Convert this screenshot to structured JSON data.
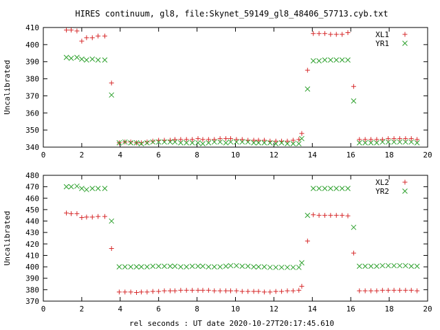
{
  "chart_data": [
    {
      "type": "scatter",
      "title": "HIRES continuum, gl8, file:Skynet_59149_gl8_48406_57713.cyb.txt",
      "xlabel": "",
      "ylabel": "Uncalibrated",
      "xlim": [
        0,
        20
      ],
      "ylim": [
        340,
        410
      ],
      "xticks": [
        "0",
        "2",
        "4",
        "6",
        "8",
        "10",
        "12",
        "14",
        "16",
        "18",
        "20"
      ],
      "yticks": [
        "340",
        "350",
        "360",
        "370",
        "380",
        "390",
        "400",
        "410"
      ],
      "legend_position": "top-right",
      "series": [
        {
          "name": "XL1",
          "marker": "plus",
          "color": "#d62728",
          "x": [
            1.2,
            1.45,
            1.75,
            2.0,
            2.25,
            2.55,
            2.85,
            3.2,
            3.55,
            3.95,
            4.25,
            4.55,
            4.85,
            5.1,
            5.4,
            5.7,
            6.0,
            6.3,
            6.6,
            6.85,
            7.15,
            7.45,
            7.75,
            8.05,
            8.3,
            8.6,
            8.9,
            9.2,
            9.5,
            9.75,
            10.05,
            10.35,
            10.65,
            10.95,
            11.2,
            11.5,
            11.8,
            12.1,
            12.4,
            12.7,
            13.0,
            13.3,
            13.45,
            13.75,
            14.05,
            14.35,
            14.65,
            14.95,
            15.25,
            15.55,
            15.85,
            16.15,
            16.45,
            16.75,
            17.05,
            17.35,
            17.65,
            17.95,
            18.25,
            18.55,
            18.85,
            19.15,
            19.45
          ],
          "y": [
            408.5,
            408.5,
            408,
            402,
            404,
            404,
            405,
            405,
            377.5,
            342.5,
            343,
            343,
            342.5,
            342.5,
            343,
            343.5,
            344,
            344,
            344,
            344.5,
            344.5,
            344.5,
            344.5,
            345,
            344.5,
            344.5,
            344.5,
            345,
            345,
            345,
            344.5,
            344.5,
            344,
            344,
            344,
            344,
            343.5,
            343.5,
            343.5,
            343.5,
            344,
            344.5,
            348,
            385,
            406.5,
            406.5,
            406.5,
            406,
            406,
            406,
            407,
            375.5,
            344.5,
            344.5,
            344.5,
            344.5,
            344.5,
            345,
            345,
            345,
            345,
            345,
            344.5
          ]
        },
        {
          "name": "YR1",
          "marker": "cross",
          "color": "#2ca02c",
          "x": [
            1.2,
            1.45,
            1.75,
            2.0,
            2.25,
            2.55,
            2.85,
            3.2,
            3.55,
            3.95,
            4.25,
            4.55,
            4.85,
            5.1,
            5.4,
            5.7,
            6.0,
            6.3,
            6.6,
            6.85,
            7.15,
            7.45,
            7.75,
            8.05,
            8.3,
            8.6,
            8.9,
            9.2,
            9.5,
            9.75,
            10.05,
            10.35,
            10.65,
            10.95,
            11.2,
            11.5,
            11.8,
            12.1,
            12.4,
            12.7,
            13.0,
            13.3,
            13.45,
            13.75,
            14.05,
            14.35,
            14.65,
            14.95,
            15.25,
            15.55,
            15.85,
            16.15,
            16.45,
            16.75,
            17.05,
            17.35,
            17.65,
            17.95,
            18.25,
            18.55,
            18.85,
            19.15,
            19.45
          ],
          "y": [
            392.5,
            392,
            392.5,
            391.5,
            391,
            391.5,
            391,
            391,
            370.5,
            342.5,
            343,
            342.5,
            342.5,
            342,
            342.5,
            343,
            343,
            343,
            343,
            343,
            342.5,
            342.5,
            342.5,
            342.5,
            342,
            342.5,
            343,
            343,
            342.5,
            343,
            343,
            343,
            343,
            342.5,
            342.5,
            342.5,
            342.5,
            342,
            342.5,
            342,
            342,
            342,
            345,
            374,
            390.5,
            390.5,
            391,
            391,
            391,
            391,
            391,
            367,
            342.5,
            342.5,
            342.5,
            342.5,
            343,
            343,
            343,
            343,
            343,
            343,
            342.5
          ]
        }
      ]
    },
    {
      "type": "scatter",
      "title": "",
      "xlabel": "rel seconds : UT date 2020-10-27T20:17:45.610",
      "ylabel": "Uncalibrated",
      "xlim": [
        0,
        20
      ],
      "ylim": [
        370,
        480
      ],
      "xticks": [
        "0",
        "2",
        "4",
        "6",
        "8",
        "10",
        "12",
        "14",
        "16",
        "18",
        "20"
      ],
      "yticks": [
        "370",
        "380",
        "390",
        "400",
        "410",
        "420",
        "430",
        "440",
        "450",
        "460",
        "470",
        "480"
      ],
      "legend_position": "top-right",
      "series": [
        {
          "name": "XL2",
          "marker": "plus",
          "color": "#d62728",
          "x": [
            1.2,
            1.45,
            1.75,
            2.0,
            2.25,
            2.55,
            2.85,
            3.2,
            3.55,
            3.95,
            4.25,
            4.55,
            4.85,
            5.1,
            5.4,
            5.7,
            6.0,
            6.3,
            6.6,
            6.85,
            7.15,
            7.45,
            7.75,
            8.05,
            8.3,
            8.6,
            8.9,
            9.2,
            9.5,
            9.75,
            10.05,
            10.35,
            10.65,
            10.95,
            11.2,
            11.5,
            11.8,
            12.1,
            12.4,
            12.7,
            13.0,
            13.3,
            13.45,
            13.75,
            14.05,
            14.35,
            14.65,
            14.95,
            15.25,
            15.55,
            15.85,
            16.15,
            16.45,
            16.75,
            17.05,
            17.35,
            17.65,
            17.95,
            18.25,
            18.55,
            18.85,
            19.15,
            19.45
          ],
          "y": [
            447,
            446.5,
            446.5,
            443,
            443.5,
            443.5,
            444,
            444,
            416,
            378,
            378,
            378,
            377.5,
            378,
            378,
            378.5,
            378.5,
            379,
            379,
            379,
            379.5,
            379.5,
            379.5,
            379.5,
            379.5,
            379.5,
            379,
            379,
            379,
            379,
            379,
            378.5,
            378.5,
            378.5,
            378.5,
            378,
            378,
            378.5,
            378.5,
            379,
            379,
            379.5,
            383,
            422.5,
            445.5,
            445,
            445,
            445,
            445,
            445,
            444.5,
            412,
            379,
            379,
            379,
            379,
            379.5,
            379.5,
            379.5,
            379.5,
            379.5,
            379.5,
            379
          ]
        },
        {
          "name": "YR2",
          "marker": "cross",
          "color": "#2ca02c",
          "x": [
            1.2,
            1.45,
            1.75,
            2.0,
            2.25,
            2.55,
            2.85,
            3.2,
            3.55,
            3.95,
            4.25,
            4.55,
            4.85,
            5.1,
            5.4,
            5.7,
            6.0,
            6.3,
            6.6,
            6.85,
            7.15,
            7.45,
            7.75,
            8.05,
            8.3,
            8.6,
            8.9,
            9.2,
            9.5,
            9.75,
            10.05,
            10.35,
            10.65,
            10.95,
            11.2,
            11.5,
            11.8,
            12.1,
            12.4,
            12.7,
            13.0,
            13.3,
            13.45,
            13.75,
            14.05,
            14.35,
            14.65,
            14.95,
            15.25,
            15.55,
            15.85,
            16.15,
            16.45,
            16.75,
            17.05,
            17.35,
            17.65,
            17.95,
            18.25,
            18.55,
            18.85,
            19.15,
            19.45
          ],
          "y": [
            470,
            470,
            470.5,
            468.5,
            467.5,
            468.5,
            468.5,
            468.5,
            440,
            400,
            400,
            400,
            400,
            400,
            400,
            400.5,
            400.5,
            400.5,
            400.5,
            400.5,
            400,
            400,
            400.5,
            400.5,
            400.5,
            400,
            400,
            400,
            400.5,
            401,
            401,
            400.5,
            400.5,
            400,
            400,
            400,
            399.5,
            399.5,
            399.5,
            399.5,
            399.5,
            399.5,
            403.5,
            445,
            468.5,
            468.5,
            468.5,
            468.5,
            468.5,
            468.5,
            468.5,
            434.5,
            400.5,
            400.5,
            400.5,
            400.5,
            401,
            401,
            401,
            401,
            401,
            400.5,
            400.5
          ]
        }
      ]
    }
  ]
}
